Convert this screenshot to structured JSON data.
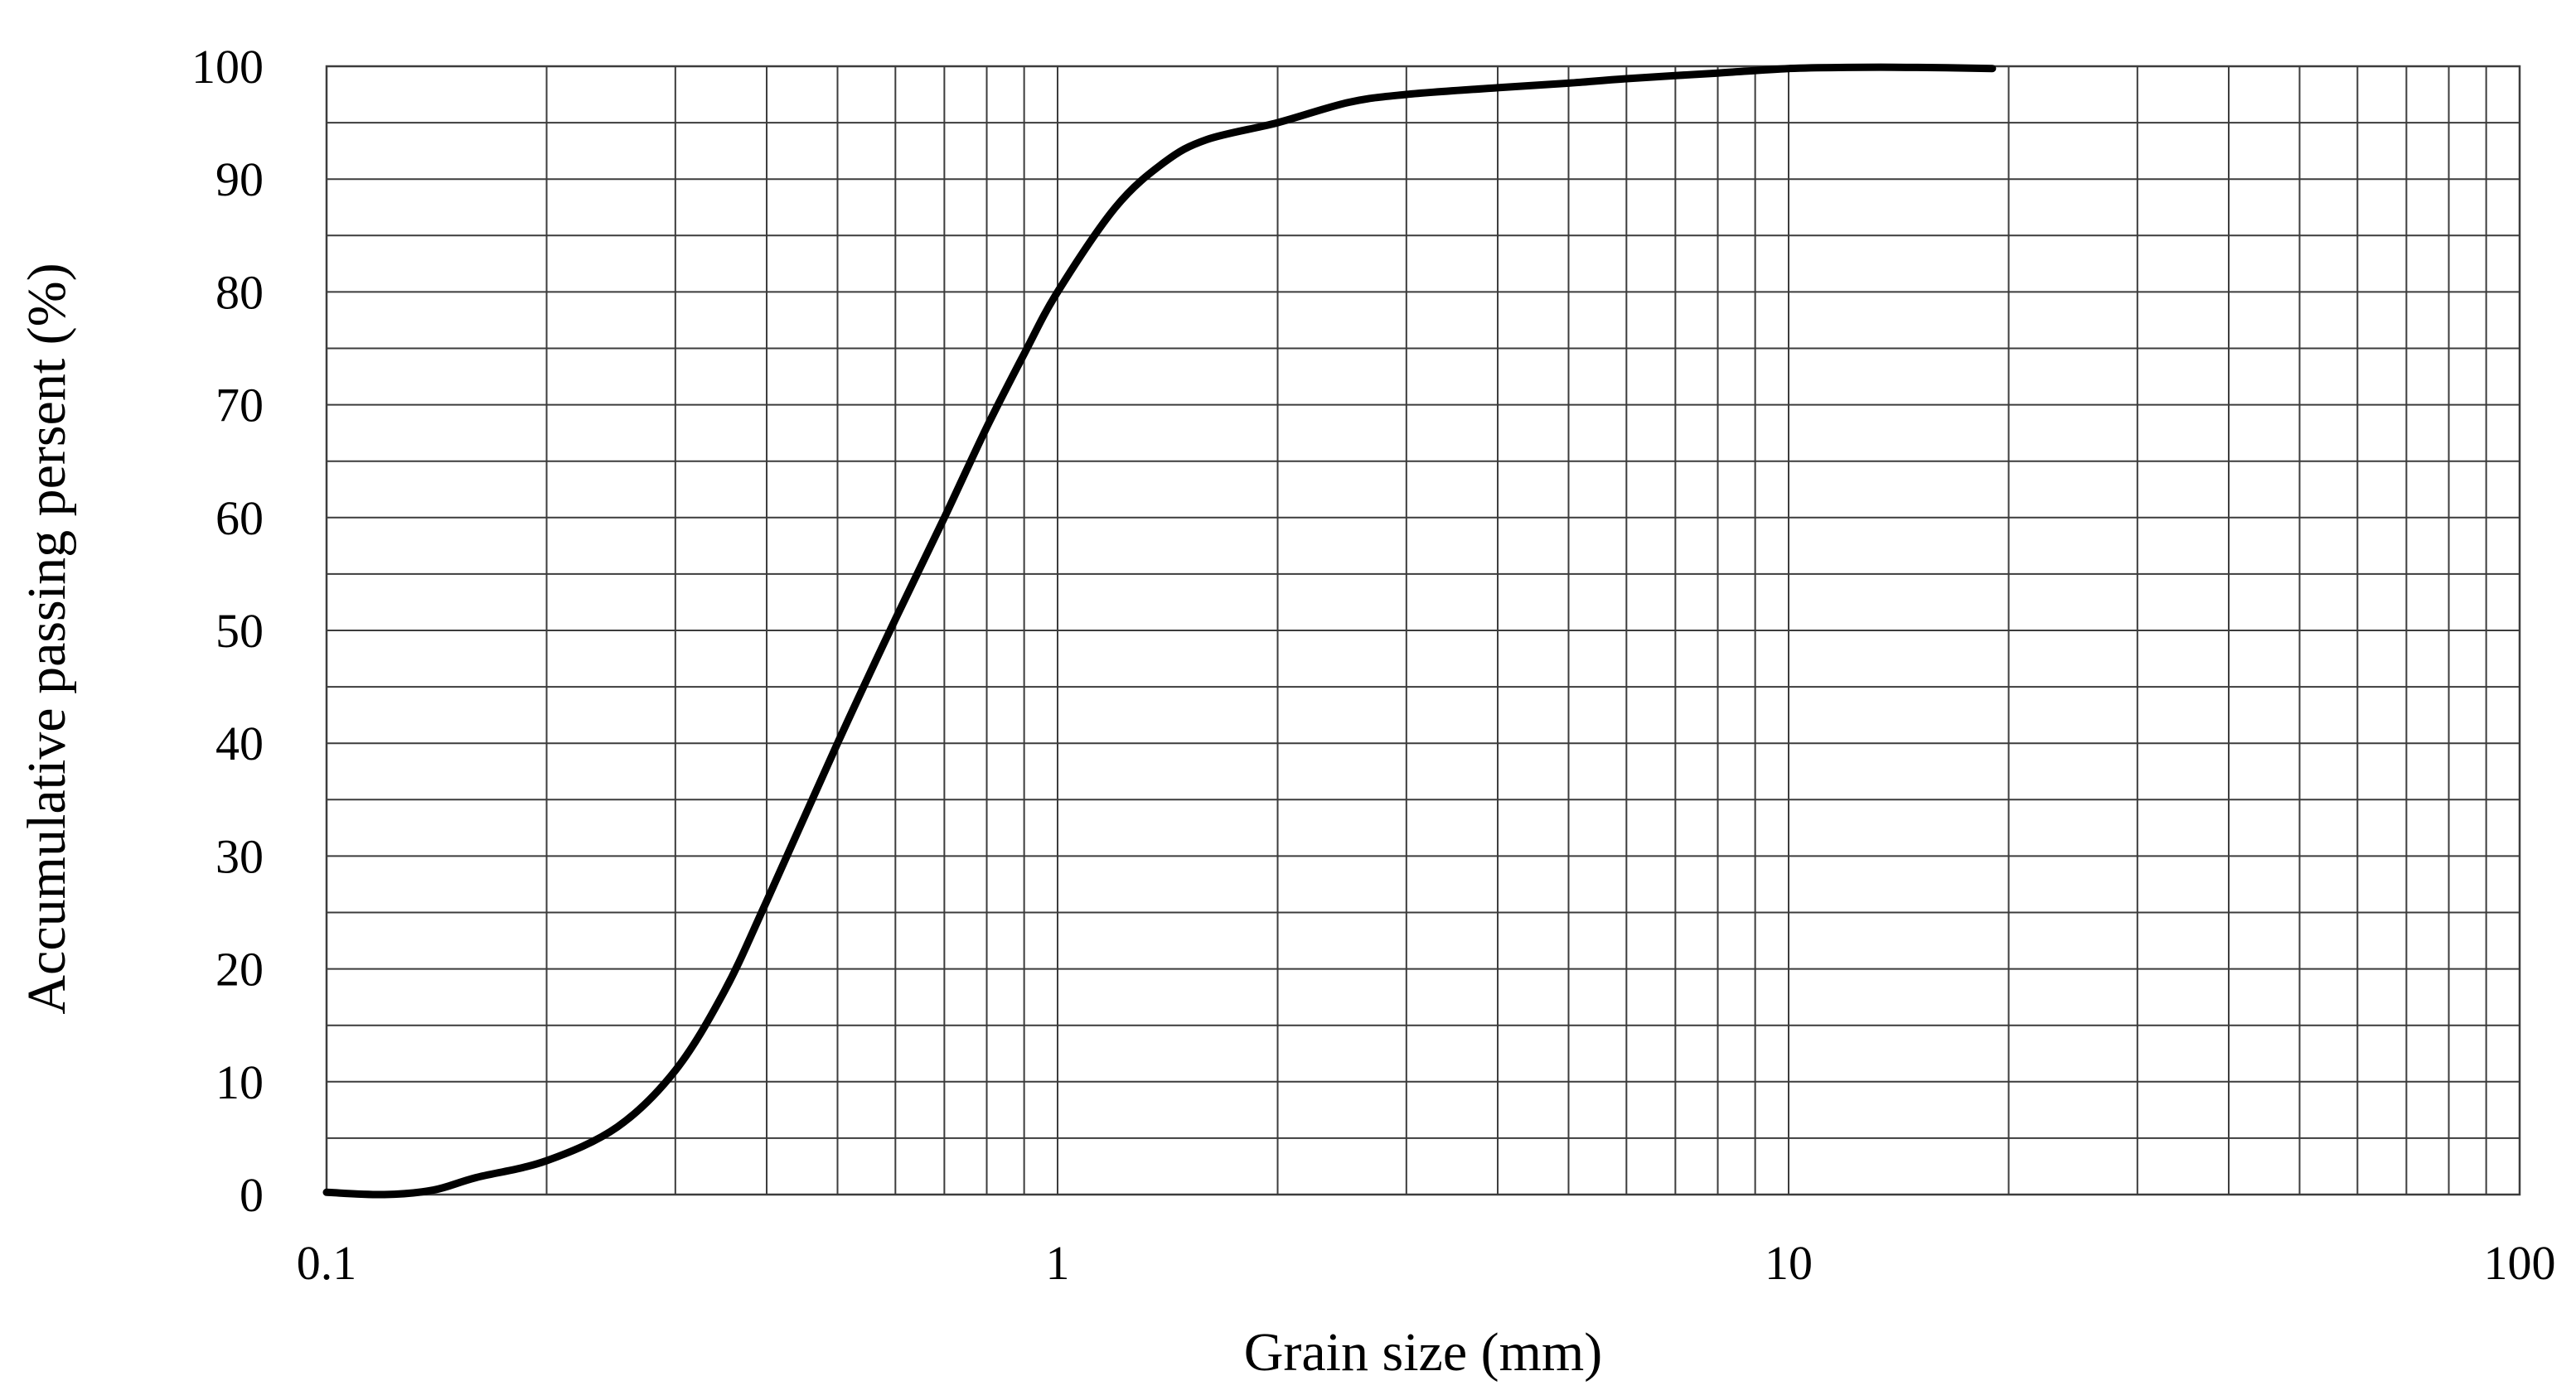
{
  "chart_data": {
    "type": "line",
    "title": "",
    "xlabel": "Grain size (mm)",
    "ylabel": "Accumulative passing persent (%)",
    "x_scale": "log",
    "xlim": [
      0.1,
      100
    ],
    "ylim": [
      0,
      100
    ],
    "grid": true,
    "legend": "none",
    "x_ticks": [
      0.1,
      1,
      10,
      100
    ],
    "x_tick_labels": [
      "0.1",
      "1",
      "10",
      "100"
    ],
    "y_ticks": [
      0,
      10,
      20,
      30,
      40,
      50,
      60,
      70,
      80,
      90,
      100
    ],
    "y_tick_labels": [
      "0",
      "10",
      "20",
      "30",
      "40",
      "50",
      "60",
      "70",
      "80",
      "90",
      "100"
    ],
    "y_minor_step": 5,
    "series": [
      {
        "color": "#000000",
        "x": [
          0.1,
          0.12,
          0.14,
          0.16,
          0.2,
          0.25,
          0.3,
          0.35,
          0.4,
          0.5,
          0.6,
          0.7,
          0.8,
          0.9,
          1.0,
          1.2,
          1.4,
          1.6,
          2.0,
          2.5,
          3.0,
          4.0,
          5.0,
          6.0,
          8.0,
          10.0,
          12.0,
          15.0,
          19.0
        ],
        "y": [
          0.2,
          0,
          0.4,
          1.5,
          3,
          6,
          11,
          18,
          26,
          40,
          51,
          60,
          68,
          74.5,
          80,
          87.5,
          91.5,
          93.5,
          95,
          96.8,
          97.5,
          98.1,
          98.5,
          98.9,
          99.4,
          99.8,
          99.9,
          99.9,
          99.8
        ]
      }
    ]
  }
}
